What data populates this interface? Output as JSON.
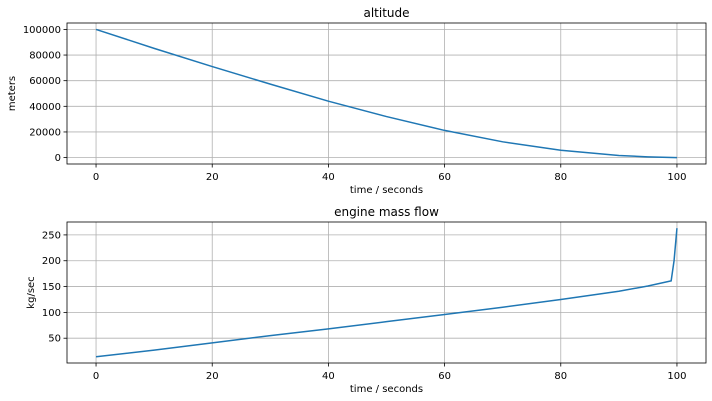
{
  "chart_data": [
    {
      "type": "line",
      "title": "altitude",
      "xlabel": "time / seconds",
      "ylabel": "meters",
      "xlim": [
        -5,
        105
      ],
      "ylim": [
        -5000,
        105000
      ],
      "xticks": [
        0,
        20,
        40,
        60,
        80,
        100
      ],
      "yticks": [
        0,
        20000,
        40000,
        60000,
        80000,
        100000
      ],
      "grid": true,
      "color": "#1f77b4",
      "x": [
        0,
        10,
        20,
        30,
        40,
        50,
        60,
        70,
        80,
        90,
        95,
        100
      ],
      "y": [
        100000,
        85200,
        71000,
        57300,
        44000,
        32000,
        21200,
        12300,
        5700,
        1600,
        600,
        0
      ]
    },
    {
      "type": "line",
      "title": "engine mass flow",
      "xlabel": "time / seconds",
      "ylabel": "kg/sec",
      "xlim": [
        -5,
        105
      ],
      "ylim": [
        2,
        275
      ],
      "xticks": [
        0,
        20,
        40,
        60,
        80,
        100
      ],
      "yticks": [
        50,
        100,
        150,
        200,
        250
      ],
      "grid": true,
      "color": "#1f77b4",
      "x": [
        0,
        10,
        20,
        30,
        40,
        50,
        60,
        70,
        80,
        90,
        95,
        99,
        99.5,
        100
      ],
      "y": [
        14,
        27,
        41,
        55,
        68,
        82,
        96,
        110,
        125,
        141,
        151,
        161,
        200,
        263
      ]
    }
  ]
}
